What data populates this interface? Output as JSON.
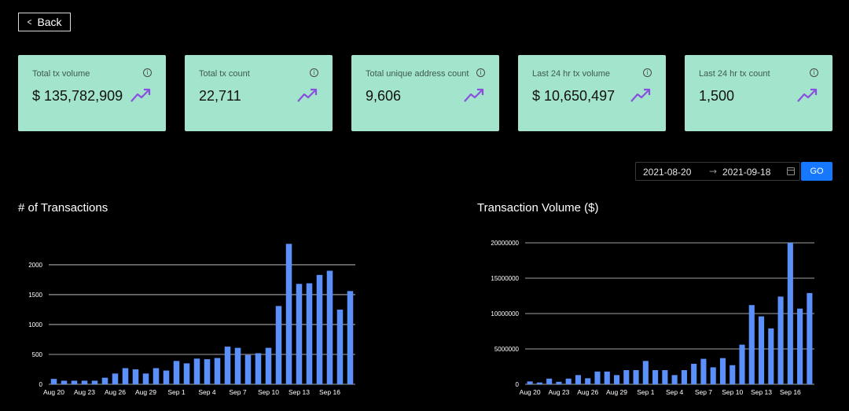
{
  "back_label": "Back",
  "cards": [
    {
      "label": "Total tx volume",
      "value": "$ 135,782,909",
      "icon": "trend-up-icon"
    },
    {
      "label": "Total tx count",
      "value": "22,711",
      "icon": "trend-up-icon"
    },
    {
      "label": "Total unique address count",
      "value": "9,606",
      "icon": "trend-up-icon"
    },
    {
      "label": "Last 24 hr tx volume",
      "value": "$ 10,650,497",
      "icon": "trend-up-icon"
    },
    {
      "label": "Last 24 hr tx count",
      "value": "1,500",
      "icon": "trend-up-icon"
    }
  ],
  "date_range": {
    "start": "2021-08-20",
    "end": "2021-09-18"
  },
  "go_label": "GO",
  "colors": {
    "card_bg": "#a2e4cc",
    "trend": "#8a4fe0",
    "bar": "#5b8ff9",
    "go": "#1677ff"
  },
  "chart_data": [
    {
      "type": "bar",
      "title": "# of Transactions",
      "categories": [
        "Aug 20",
        "Aug 21",
        "Aug 22",
        "Aug 23",
        "Aug 24",
        "Aug 25",
        "Aug 26",
        "Aug 27",
        "Aug 28",
        "Aug 29",
        "Aug 30",
        "Aug 31",
        "Sep 1",
        "Sep 2",
        "Sep 3",
        "Sep 4",
        "Sep 5",
        "Sep 6",
        "Sep 7",
        "Sep 8",
        "Sep 9",
        "Sep 10",
        "Sep 11",
        "Sep 12",
        "Sep 13",
        "Sep 14",
        "Sep 15",
        "Sep 16",
        "Sep 17",
        "Sep 18"
      ],
      "x_tick_labels": [
        "Aug 20",
        "Aug 23",
        "Aug 26",
        "Aug 29",
        "Sep 1",
        "Sep 4",
        "Sep 7",
        "Sep 10",
        "Sep 13",
        "Sep 16"
      ],
      "values": [
        90,
        60,
        60,
        60,
        60,
        110,
        180,
        270,
        250,
        180,
        270,
        230,
        390,
        350,
        430,
        420,
        440,
        630,
        610,
        490,
        520,
        610,
        1310,
        2350,
        1680,
        1690,
        1830,
        1900,
        1250,
        1560
      ],
      "ylim": [
        0,
        2400
      ],
      "yticks": [
        0,
        500,
        1000,
        1500,
        2000
      ],
      "grid": true
    },
    {
      "type": "bar",
      "title": "Transaction Volume ($)",
      "categories": [
        "Aug 20",
        "Aug 21",
        "Aug 22",
        "Aug 23",
        "Aug 24",
        "Aug 25",
        "Aug 26",
        "Aug 27",
        "Aug 28",
        "Aug 29",
        "Aug 30",
        "Aug 31",
        "Sep 1",
        "Sep 2",
        "Sep 3",
        "Sep 4",
        "Sep 5",
        "Sep 6",
        "Sep 7",
        "Sep 8",
        "Sep 9",
        "Sep 10",
        "Sep 11",
        "Sep 12",
        "Sep 13",
        "Sep 14",
        "Sep 15",
        "Sep 16",
        "Sep 17",
        "Sep 18"
      ],
      "x_tick_labels": [
        "Aug 20",
        "Aug 23",
        "Aug 26",
        "Aug 29",
        "Sep 1",
        "Sep 4",
        "Sep 7",
        "Sep 10",
        "Sep 13",
        "Sep 16"
      ],
      "values": [
        400000,
        250000,
        800000,
        350000,
        800000,
        1300000,
        850000,
        1800000,
        1800000,
        1300000,
        2000000,
        2000000,
        3300000,
        2000000,
        2000000,
        1300000,
        2000000,
        2900000,
        3600000,
        2400000,
        3700000,
        2700000,
        5600000,
        11200000,
        9600000,
        7900000,
        12400000,
        20000000,
        10700000,
        12900000
      ],
      "ylim": [
        0,
        20000000
      ],
      "yticks": [
        0,
        5000000,
        10000000,
        15000000,
        20000000
      ],
      "grid": true
    }
  ]
}
